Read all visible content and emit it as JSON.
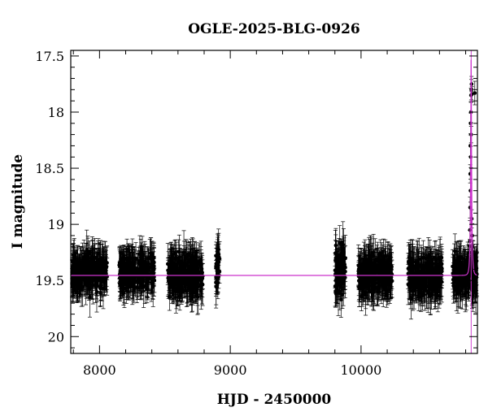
{
  "chart_data": {
    "type": "scatter",
    "title": "OGLE-2025-BLG-0926",
    "xlabel": "HJD - 2450000",
    "ylabel": "I magnitude",
    "xlim": [
      7780,
      10890
    ],
    "ylim": [
      20.15,
      17.45
    ],
    "y_inverted": true,
    "grid": false,
    "x_ticks": [
      8000,
      9000,
      10000
    ],
    "x_tick_labels": [
      "8000",
      "9000",
      "10000"
    ],
    "y_ticks": [
      17.5,
      18,
      18.5,
      19,
      19.5,
      20
    ],
    "y_tick_labels": [
      "17.5",
      "18",
      "18.5",
      "19",
      "19.5",
      "20"
    ],
    "colors": {
      "data": "#000000",
      "model": "#cc33cc"
    },
    "series": [
      {
        "kind": "observations",
        "seasons": [
          {
            "start": 7790,
            "end": 8060,
            "mean": 19.42,
            "scatter": 0.12,
            "error": 0.13
          },
          {
            "start": 8150,
            "end": 8420,
            "mean": 19.43,
            "scatter": 0.12,
            "error": 0.13
          },
          {
            "start": 8520,
            "end": 8790,
            "mean": 19.45,
            "scatter": 0.13,
            "error": 0.14
          },
          {
            "start": 8890,
            "end": 8920,
            "mean": 19.4,
            "scatter": 0.15,
            "error": 0.14
          },
          {
            "start": 9800,
            "end": 9880,
            "mean": 19.42,
            "scatter": 0.18,
            "error": 0.15
          },
          {
            "start": 9980,
            "end": 10240,
            "mean": 19.45,
            "scatter": 0.13,
            "error": 0.14
          },
          {
            "start": 10360,
            "end": 10620,
            "mean": 19.46,
            "scatter": 0.13,
            "error": 0.14
          },
          {
            "start": 10700,
            "end": 10885,
            "mean": 19.45,
            "scatter": 0.13,
            "error": 0.14
          }
        ],
        "peak_points": [
          {
            "x": 10845,
            "y": 17.75
          },
          {
            "x": 10843,
            "y": 17.8
          },
          {
            "x": 10841,
            "y": 17.85
          },
          {
            "x": 10848,
            "y": 17.84
          },
          {
            "x": 10870,
            "y": 17.83
          },
          {
            "x": 10840,
            "y": 18.0
          },
          {
            "x": 10838,
            "y": 18.1
          },
          {
            "x": 10842,
            "y": 18.2
          },
          {
            "x": 10836,
            "y": 18.3
          },
          {
            "x": 10839,
            "y": 18.4
          },
          {
            "x": 10835,
            "y": 18.55
          },
          {
            "x": 10837,
            "y": 18.7
          },
          {
            "x": 10834,
            "y": 18.85
          },
          {
            "x": 10846,
            "y": 18.95
          },
          {
            "x": 10833,
            "y": 19.05
          },
          {
            "x": 10850,
            "y": 19.1
          },
          {
            "x": 10832,
            "y": 19.15
          },
          {
            "x": 10852,
            "y": 19.2
          },
          {
            "x": 10830,
            "y": 19.25
          },
          {
            "x": 10855,
            "y": 19.28
          }
        ]
      },
      {
        "kind": "model",
        "baseline": 19.455,
        "peak_t0": 10842,
        "peak_mag": 17.45,
        "tE": 9
      }
    ]
  }
}
